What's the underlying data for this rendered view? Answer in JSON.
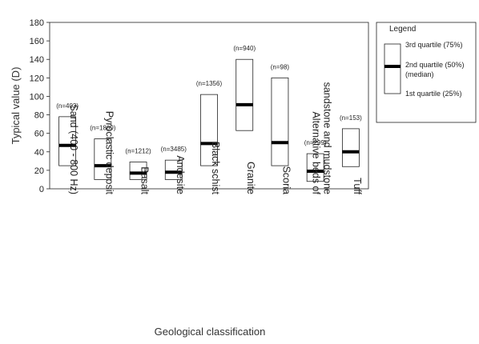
{
  "chart_data": {
    "type": "box",
    "xlabel": "Geological classification",
    "ylabel": "Typical value (D)",
    "ylim": [
      0,
      180
    ],
    "yticks": [
      0,
      20,
      40,
      60,
      80,
      100,
      120,
      140,
      160,
      180
    ],
    "grid": false,
    "legend_position": "right",
    "categories": [
      {
        "lines": [
          "Sand (400 - 800 Hz)"
        ],
        "n": "(n=403)",
        "q1": 25,
        "median": 47,
        "q3": 78
      },
      {
        "lines": [
          "Pyroclastic deposit"
        ],
        "n": "(n=1869)",
        "q1": 10,
        "median": 25,
        "q3": 54
      },
      {
        "lines": [
          "Basalt"
        ],
        "n": "(n=1212)",
        "q1": 10,
        "median": 17,
        "q3": 29
      },
      {
        "lines": [
          "Andesite"
        ],
        "n": "(n=3485)",
        "q1": 10,
        "median": 18,
        "q3": 31
      },
      {
        "lines": [
          "Black schist"
        ],
        "n": "(n=1356)",
        "q1": 25,
        "median": 49,
        "q3": 102
      },
      {
        "lines": [
          "Granite"
        ],
        "n": "(n=940)",
        "q1": 63,
        "median": 91,
        "q3": 140
      },
      {
        "lines": [
          "Scoria"
        ],
        "n": "(n=98)",
        "q1": 25,
        "median": 50,
        "q3": 120
      },
      {
        "lines": [
          "Alternative beds of",
          "sandstone and mudstone"
        ],
        "n": "(n=299)",
        "q1": 8,
        "median": 19,
        "q3": 38
      },
      {
        "lines": [
          "Tuff"
        ],
        "n": "(n=153)",
        "q1": 24,
        "median": 40,
        "q3": 65
      }
    ],
    "legend": {
      "title": "Legend",
      "q3": "3rd quartile (75%)",
      "median": "2nd quartile (50%)",
      "median_sub": "(median)",
      "q1": "1st quartile (25%)"
    }
  }
}
